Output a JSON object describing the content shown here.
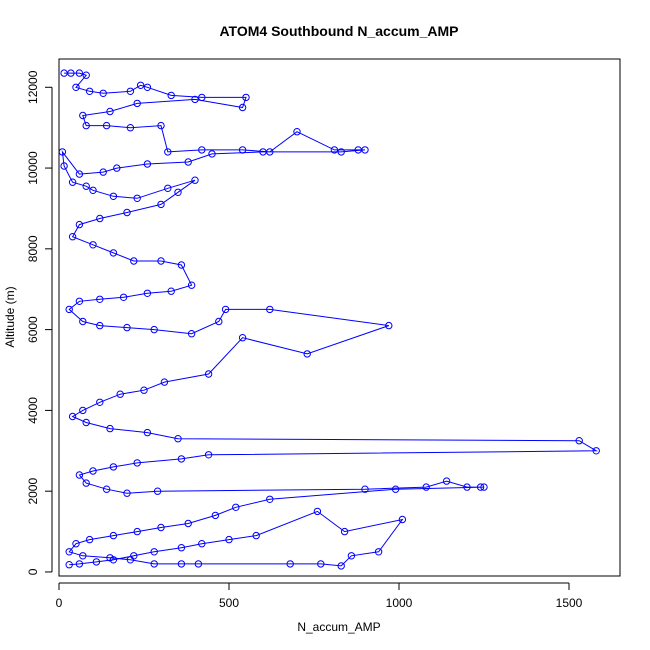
{
  "chart_data": {
    "type": "scatter",
    "title": "ATOM4 Southbound N_accum_AMP",
    "xlabel": "N_accum_AMP",
    "ylabel": "Altitude (m)",
    "xlim": [
      0,
      1650
    ],
    "ylim": [
      -100,
      12700
    ],
    "x_ticks": [
      0,
      500,
      1000,
      1500
    ],
    "y_ticks": [
      0,
      2000,
      4000,
      6000,
      8000,
      10000,
      12000
    ],
    "x_tick_labels": [
      "0",
      "500",
      "1000",
      "1500"
    ],
    "y_tick_labels": [
      "0",
      "2000",
      "4000",
      "6000",
      "8000",
      "10000",
      "12000"
    ],
    "grid": false,
    "legend": "none",
    "series_color": "#0000ff",
    "series": [
      {
        "values": [
          [
            15,
            12350
          ],
          [
            35,
            12350
          ],
          [
            60,
            12350
          ],
          [
            80,
            12300
          ],
          [
            50,
            12000
          ],
          [
            90,
            11900
          ],
          [
            130,
            11850
          ],
          [
            210,
            11900
          ],
          [
            240,
            12050
          ],
          [
            260,
            12000
          ],
          [
            330,
            11800
          ],
          [
            420,
            11750
          ],
          [
            550,
            11750
          ],
          [
            540,
            11500
          ],
          [
            400,
            11700
          ],
          [
            230,
            11600
          ],
          [
            150,
            11400
          ],
          [
            70,
            11300
          ],
          [
            80,
            11050
          ],
          [
            140,
            11050
          ],
          [
            210,
            11000
          ],
          [
            300,
            11050
          ],
          [
            320,
            10400
          ],
          [
            420,
            10450
          ],
          [
            540,
            10450
          ],
          [
            620,
            10400
          ],
          [
            700,
            10900
          ],
          [
            810,
            10450
          ],
          [
            880,
            10450
          ],
          [
            900,
            10450
          ],
          [
            830,
            10400
          ],
          [
            600,
            10400
          ],
          [
            450,
            10350
          ],
          [
            380,
            10150
          ],
          [
            260,
            10100
          ],
          [
            170,
            10000
          ],
          [
            130,
            9900
          ],
          [
            60,
            9850
          ],
          [
            10,
            10400
          ],
          [
            15,
            10050
          ],
          [
            40,
            9650
          ],
          [
            80,
            9550
          ],
          [
            100,
            9450
          ],
          [
            160,
            9300
          ],
          [
            230,
            9250
          ],
          [
            320,
            9500
          ],
          [
            400,
            9700
          ],
          [
            350,
            9400
          ],
          [
            300,
            9100
          ],
          [
            200,
            8900
          ],
          [
            120,
            8750
          ],
          [
            60,
            8600
          ],
          [
            40,
            8300
          ],
          [
            100,
            8100
          ],
          [
            160,
            7900
          ],
          [
            220,
            7700
          ],
          [
            300,
            7700
          ],
          [
            360,
            7600
          ],
          [
            390,
            7100
          ],
          [
            330,
            6950
          ],
          [
            260,
            6900
          ],
          [
            190,
            6800
          ],
          [
            120,
            6750
          ],
          [
            60,
            6700
          ],
          [
            30,
            6500
          ],
          [
            70,
            6200
          ],
          [
            120,
            6100
          ],
          [
            200,
            6050
          ],
          [
            280,
            6000
          ],
          [
            390,
            5900
          ],
          [
            470,
            6200
          ],
          [
            490,
            6500
          ],
          [
            620,
            6500
          ],
          [
            970,
            6100
          ],
          [
            730,
            5400
          ],
          [
            540,
            5800
          ],
          [
            440,
            4900
          ],
          [
            310,
            4700
          ],
          [
            250,
            4500
          ],
          [
            180,
            4400
          ],
          [
            120,
            4200
          ],
          [
            70,
            4000
          ],
          [
            40,
            3850
          ],
          [
            80,
            3700
          ],
          [
            150,
            3550
          ],
          [
            260,
            3450
          ],
          [
            350,
            3300
          ],
          [
            1530,
            3250
          ],
          [
            1580,
            3000
          ],
          [
            440,
            2900
          ],
          [
            360,
            2800
          ],
          [
            230,
            2700
          ],
          [
            160,
            2600
          ],
          [
            100,
            2500
          ],
          [
            60,
            2400
          ],
          [
            80,
            2200
          ],
          [
            140,
            2050
          ],
          [
            200,
            1950
          ],
          [
            290,
            2000
          ],
          [
            900,
            2050
          ],
          [
            1080,
            2100
          ],
          [
            1140,
            2250
          ],
          [
            1200,
            2100
          ],
          [
            1240,
            2100
          ],
          [
            1250,
            2100
          ],
          [
            990,
            2050
          ],
          [
            620,
            1800
          ],
          [
            520,
            1600
          ],
          [
            460,
            1400
          ],
          [
            380,
            1200
          ],
          [
            300,
            1100
          ],
          [
            230,
            1000
          ],
          [
            160,
            900
          ],
          [
            90,
            800
          ],
          [
            50,
            700
          ],
          [
            30,
            500
          ],
          [
            70,
            400
          ],
          [
            150,
            350
          ],
          [
            210,
            300
          ],
          [
            280,
            200
          ],
          [
            360,
            200
          ],
          [
            410,
            200
          ],
          [
            680,
            200
          ],
          [
            770,
            200
          ],
          [
            830,
            150
          ],
          [
            860,
            400
          ],
          [
            940,
            500
          ],
          [
            1010,
            1300
          ],
          [
            840,
            1000
          ],
          [
            760,
            1500
          ],
          [
            580,
            900
          ],
          [
            500,
            800
          ],
          [
            420,
            700
          ],
          [
            360,
            600
          ],
          [
            280,
            500
          ],
          [
            220,
            400
          ],
          [
            160,
            300
          ],
          [
            110,
            250
          ],
          [
            60,
            200
          ],
          [
            30,
            180
          ]
        ]
      }
    ]
  }
}
